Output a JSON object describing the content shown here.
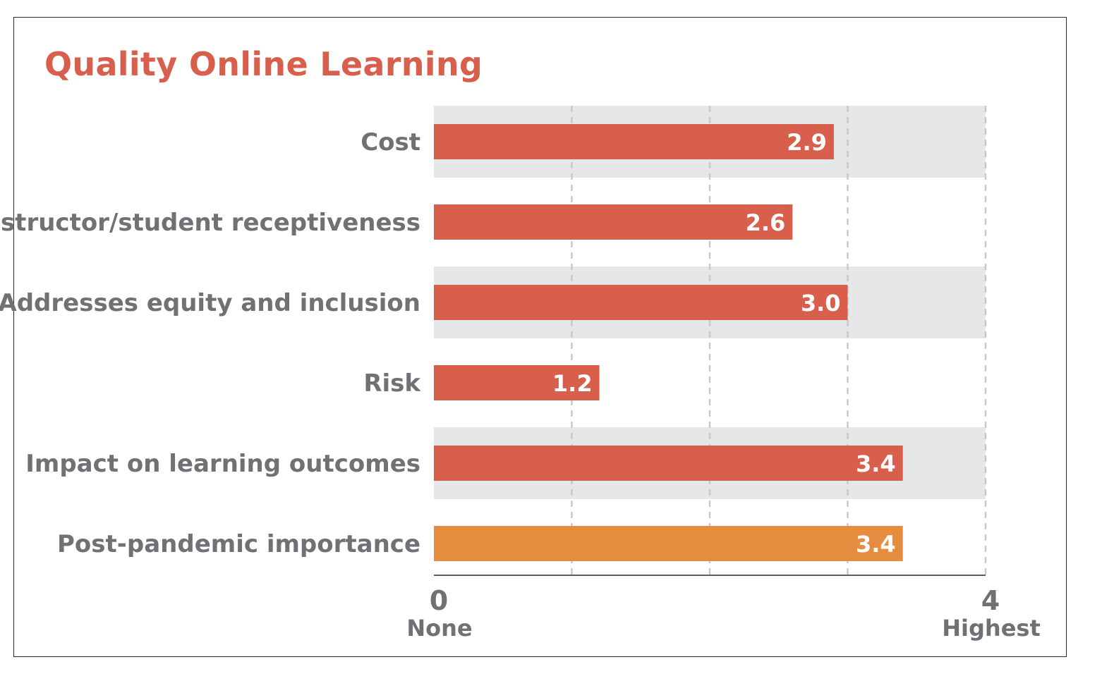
{
  "chart_data": {
    "type": "bar",
    "orientation": "horizontal",
    "title": "Quality Online Learning",
    "categories": [
      "Cost",
      "Instructor/student receptiveness",
      "Addresses equity and inclusion",
      "Risk",
      "Impact on learning outcomes",
      "Post-pandemic importance"
    ],
    "values": [
      2.9,
      2.6,
      3.0,
      1.2,
      3.4,
      3.4
    ],
    "value_labels": [
      "2.9",
      "2.6",
      "3.0",
      "1.2",
      "3.4",
      "3.4"
    ],
    "bar_colors": [
      "#d95f4d",
      "#d95f4d",
      "#d95f4d",
      "#d95f4d",
      "#d95f4d",
      "#e68c3e"
    ],
    "band_color": "#e6e7e8",
    "grid_color": "#c8c9cb",
    "axis_color": "#2a2a2a",
    "xlim": [
      0,
      4
    ],
    "gridlines": [
      1,
      2,
      3,
      4
    ],
    "x_ticks": [
      {
        "value": 0,
        "label": "0",
        "sublabel": "None"
      },
      {
        "value": 4,
        "label": "4",
        "sublabel": "Highest"
      }
    ]
  }
}
